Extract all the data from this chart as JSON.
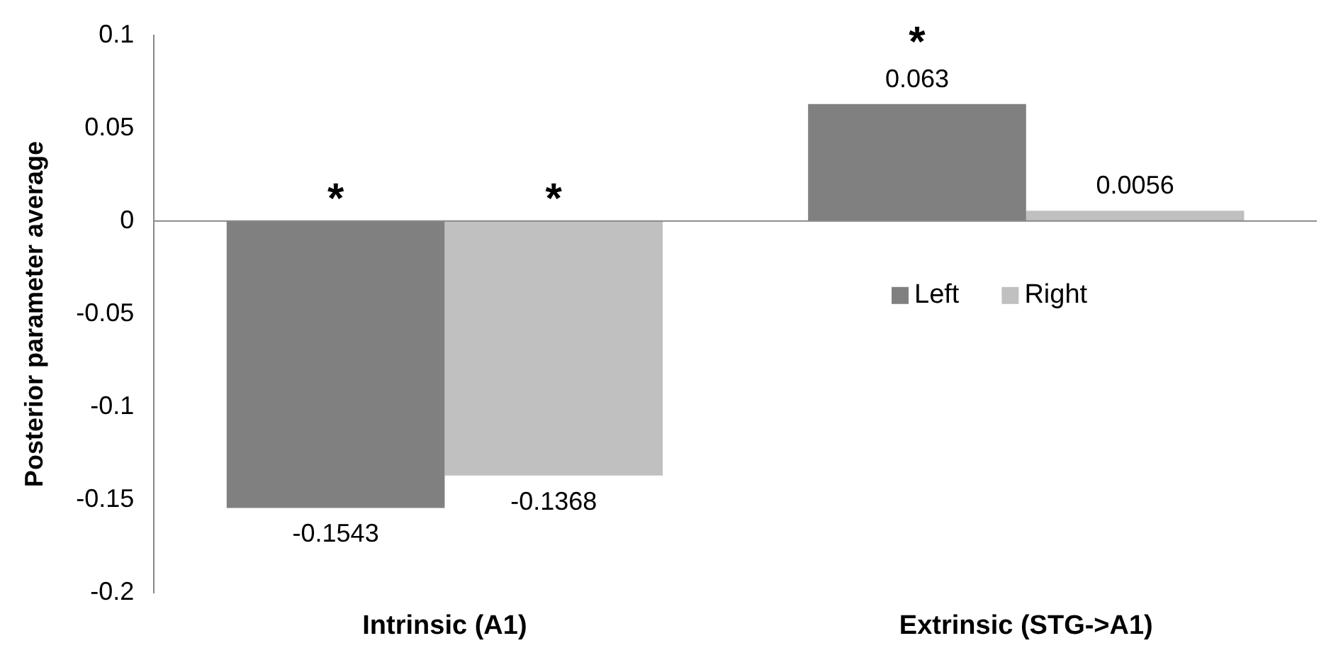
{
  "chart_data": {
    "type": "bar",
    "ylabel": "Posterior parameter average",
    "categories": [
      "Intrinsic (A1)",
      "Extrinsic (STG->A1)"
    ],
    "series": [
      {
        "name": "Left",
        "color": "#808080",
        "values": [
          -0.1543,
          0.063
        ]
      },
      {
        "name": "Right",
        "color": "#c0c0c0",
        "values": [
          -0.1368,
          0.0056
        ]
      }
    ],
    "ylim": [
      -0.2,
      0.1
    ],
    "yticks": [
      -0.2,
      -0.15,
      -0.1,
      -0.05,
      0,
      0.05,
      0.1
    ],
    "grid": false,
    "legend": "right",
    "data_labels": true,
    "ref_lines": [
      {
        "axis": "y",
        "value": 0,
        "color": "#888888"
      }
    ],
    "annotations": [
      "*",
      "*",
      "*"
    ]
  }
}
